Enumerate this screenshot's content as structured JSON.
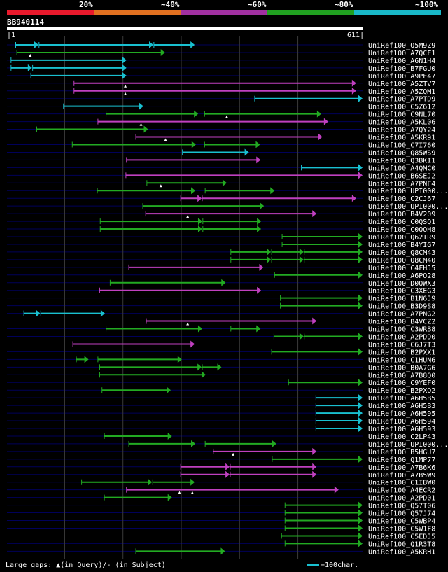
{
  "chart_data": {
    "type": "alignment",
    "legend": {
      "segments": [
        {
          "label": "20%",
          "color": "#e8192c"
        },
        {
          "label": "~40%",
          "color": "#e07020"
        },
        {
          "label": "~60%",
          "color": "#a030a0"
        },
        {
          "label": "~80%",
          "color": "#20a020"
        },
        {
          "label": "~100%",
          "color": "#19b8c8"
        }
      ]
    },
    "query": {
      "id": "BB940114",
      "start": "1",
      "end": "611",
      "length": 611
    },
    "gridlines": [
      100,
      200,
      300,
      400,
      500
    ],
    "hits": [
      {
        "label": "UniRef100_Q5M9Z9",
        "color": "cyan",
        "segs": [
          [
            16,
            55
          ],
          [
            56,
            252
          ],
          [
            253,
            323
          ]
        ],
        "marks": []
      },
      {
        "label": "UniRef100_A7QCF1",
        "color": "green",
        "segs": [
          [
            18,
            272
          ]
        ],
        "marks": [
          41
        ]
      },
      {
        "label": "UniRef100_A6N1H4",
        "color": "cyan",
        "segs": [
          [
            8,
            206
          ]
        ],
        "marks": []
      },
      {
        "label": "UniRef100_B7FGU0",
        "color": "cyan",
        "segs": [
          [
            8,
            44
          ],
          [
            45,
            206
          ]
        ],
        "marks": []
      },
      {
        "label": "UniRef100_A9PE47",
        "color": "cyan",
        "segs": [
          [
            42,
            206
          ]
        ],
        "marks": []
      },
      {
        "label": "UniRef100_A5ZTV7",
        "color": "magenta",
        "segs": [
          [
            116,
            600
          ]
        ],
        "marks": [
          204
        ]
      },
      {
        "label": "UniRef100_A5ZQM1",
        "color": "magenta",
        "segs": [
          [
            116,
            600
          ]
        ],
        "marks": [
          204
        ]
      },
      {
        "label": "UniRef100_A7PTD9",
        "color": "cyan",
        "segs": [
          [
            426,
            611
          ]
        ],
        "marks": []
      },
      {
        "label": "UniRef100_C5Z612",
        "color": "cyan",
        "segs": [
          [
            98,
            235
          ]
        ],
        "marks": []
      },
      {
        "label": "UniRef100_C9NL70",
        "color": "green",
        "segs": [
          [
            171,
            329
          ],
          [
            340,
            540
          ]
        ],
        "marks": [
          378
        ]
      },
      {
        "label": "UniRef100_A5KL06",
        "color": "magenta",
        "segs": [
          [
            157,
            552
          ]
        ],
        "marks": [
          231
        ]
      },
      {
        "label": "UniRef100_A7QY24",
        "color": "green",
        "segs": [
          [
            52,
            243
          ]
        ],
        "marks": []
      },
      {
        "label": "UniRef100_A5KR91",
        "color": "magenta",
        "segs": [
          [
            222,
            542
          ]
        ],
        "marks": [
          273
        ]
      },
      {
        "label": "UniRef100_C7I760",
        "color": "green",
        "segs": [
          [
            113,
            325
          ],
          [
            340,
            435
          ]
        ],
        "marks": []
      },
      {
        "label": "UniRef100_Q85WS9",
        "color": "cyan",
        "segs": [
          [
            302,
            416
          ]
        ],
        "marks": []
      },
      {
        "label": "UniRef100_Q3BKI1",
        "color": "magenta",
        "segs": [
          [
            206,
            436
          ]
        ],
        "marks": []
      },
      {
        "label": "UniRef100_A4QMC0",
        "color": "cyan",
        "segs": [
          [
            506,
            611
          ]
        ],
        "marks": []
      },
      {
        "label": "UniRef100_B6SEJ2",
        "color": "magenta",
        "segs": [
          [
            205,
            611
          ]
        ],
        "marks": []
      },
      {
        "label": "UniRef100_A7PNF4",
        "color": "green",
        "segs": [
          [
            241,
            378
          ]
        ],
        "marks": [
          265
        ]
      },
      {
        "label": "UniRef100_UPI000...",
        "color": "green",
        "segs": [
          [
            156,
            324
          ],
          [
            341,
            460
          ]
        ],
        "marks": []
      },
      {
        "label": "UniRef100_C2CJ67",
        "color": "magenta",
        "segs": [
          [
            299,
            335
          ],
          [
            336,
            600
          ]
        ],
        "marks": []
      },
      {
        "label": "UniRef100_UPI000...",
        "color": "green",
        "segs": [
          [
            234,
            442
          ]
        ],
        "marks": []
      },
      {
        "label": "UniRef100_B4V209",
        "color": "magenta",
        "segs": [
          [
            239,
            532
          ]
        ],
        "marks": [
          311
        ]
      },
      {
        "label": "UniRef100_C0QSQ1",
        "color": "green",
        "segs": [
          [
            161,
            336
          ],
          [
            337,
            437
          ]
        ],
        "marks": []
      },
      {
        "label": "UniRef100_C0QQH8",
        "color": "green",
        "segs": [
          [
            161,
            336
          ],
          [
            337,
            437
          ]
        ],
        "marks": []
      },
      {
        "label": "UniRef100_Q62IR9",
        "color": "green",
        "segs": [
          [
            473,
            611
          ]
        ],
        "marks": []
      },
      {
        "label": "UniRef100_B4YIG7",
        "color": "green",
        "segs": [
          [
            473,
            611
          ]
        ],
        "marks": []
      },
      {
        "label": "UniRef100_Q8CM43",
        "color": "green",
        "segs": [
          [
            385,
            454
          ],
          [
            455,
            510
          ],
          [
            511,
            611
          ]
        ],
        "marks": []
      },
      {
        "label": "UniRef100_Q8CM40",
        "color": "green",
        "segs": [
          [
            385,
            454
          ],
          [
            455,
            510
          ],
          [
            511,
            611
          ]
        ],
        "marks": []
      },
      {
        "label": "UniRef100_C4FHJ5",
        "color": "magenta",
        "segs": [
          [
            210,
            441
          ]
        ],
        "marks": []
      },
      {
        "label": "UniRef100_A6PO28",
        "color": "green",
        "segs": [
          [
            460,
            611
          ]
        ],
        "marks": []
      },
      {
        "label": "UniRef100_D0QWX3",
        "color": "green",
        "segs": [
          [
            178,
            376
          ]
        ],
        "marks": []
      },
      {
        "label": "UniRef100_C3XEG3",
        "color": "magenta",
        "segs": [
          [
            160,
            437
          ]
        ],
        "marks": []
      },
      {
        "label": "UniRef100_B1N6J9",
        "color": "green",
        "segs": [
          [
            470,
            611
          ]
        ],
        "marks": []
      },
      {
        "label": "UniRef100_B3D9S8",
        "color": "green",
        "segs": [
          [
            470,
            611
          ]
        ],
        "marks": []
      },
      {
        "label": "UniRef100_A7PNG2",
        "color": "cyan",
        "segs": [
          [
            30,
            58
          ],
          [
            59,
            169
          ]
        ],
        "marks": []
      },
      {
        "label": "UniRef100_B4VCZ2",
        "color": "magenta",
        "segs": [
          [
            240,
            532
          ]
        ],
        "marks": [
          311
        ]
      },
      {
        "label": "UniRef100_C3WRB8",
        "color": "green",
        "segs": [
          [
            171,
            336
          ],
          [
            385,
            436
          ]
        ],
        "marks": []
      },
      {
        "label": "UniRef100_A2PD90",
        "color": "green",
        "segs": [
          [
            459,
            510
          ],
          [
            511,
            611
          ]
        ],
        "marks": []
      },
      {
        "label": "UniRef100_C6J7T3",
        "color": "magenta",
        "segs": [
          [
            114,
            323
          ]
        ],
        "marks": []
      },
      {
        "label": "UniRef100_B2PXX1",
        "color": "green",
        "segs": [
          [
            455,
            611
          ]
        ],
        "marks": []
      },
      {
        "label": "UniRef100_C1HUN6",
        "color": "green",
        "segs": [
          [
            120,
            141
          ],
          [
            157,
            301
          ]
        ],
        "marks": []
      },
      {
        "label": "UniRef100_B0A7G6",
        "color": "green",
        "segs": [
          [
            160,
            335
          ],
          [
            336,
            369
          ]
        ],
        "marks": []
      },
      {
        "label": "UniRef100_A7B8Q0",
        "color": "green",
        "segs": [
          [
            160,
            342
          ]
        ],
        "marks": []
      },
      {
        "label": "UniRef100_C9YEF0",
        "color": "green",
        "segs": [
          [
            484,
            611
          ]
        ],
        "marks": []
      },
      {
        "label": "UniRef100_B2PXQ2",
        "color": "green",
        "segs": [
          [
            164,
            282
          ]
        ],
        "marks": []
      },
      {
        "label": "UniRef100_A6H5B5",
        "color": "cyan",
        "segs": [
          [
            531,
            611
          ]
        ],
        "marks": []
      },
      {
        "label": "UniRef100_A6H5B3",
        "color": "cyan",
        "segs": [
          [
            531,
            611
          ]
        ],
        "marks": []
      },
      {
        "label": "UniRef100_A6H595",
        "color": "cyan",
        "segs": [
          [
            531,
            611
          ]
        ],
        "marks": []
      },
      {
        "label": "UniRef100_A6H594",
        "color": "cyan",
        "segs": [
          [
            531,
            611
          ]
        ],
        "marks": []
      },
      {
        "label": "UniRef100_A6H593",
        "color": "cyan",
        "segs": [
          [
            531,
            611
          ]
        ],
        "marks": []
      },
      {
        "label": "UniRef100_C2LP43",
        "color": "green",
        "segs": [
          [
            168,
            284
          ]
        ],
        "marks": []
      },
      {
        "label": "UniRef100_UPI000...",
        "color": "green",
        "segs": [
          [
            210,
            324
          ],
          [
            341,
            463
          ]
        ],
        "marks": []
      },
      {
        "label": "UniRef100_B5HGU7",
        "color": "magenta",
        "segs": [
          [
            355,
            532
          ]
        ],
        "marks": [
          389
        ]
      },
      {
        "label": "UniRef100_Q1MP77",
        "color": "green",
        "segs": [
          [
            456,
            611
          ]
        ],
        "marks": []
      },
      {
        "label": "UniRef100_A7B6K6",
        "color": "magenta",
        "segs": [
          [
            299,
            383
          ],
          [
            384,
            532
          ]
        ],
        "marks": []
      },
      {
        "label": "UniRef100_A7B5W9",
        "color": "magenta",
        "segs": [
          [
            299,
            383
          ],
          [
            384,
            532
          ]
        ],
        "marks": []
      },
      {
        "label": "UniRef100_C1IBW0",
        "color": "green",
        "segs": [
          [
            129,
            250
          ],
          [
            251,
            323
          ]
        ],
        "marks": []
      },
      {
        "label": "UniRef100_A4ECR2",
        "color": "magenta",
        "segs": [
          [
            206,
            570
          ]
        ],
        "marks": [
          297,
          319
        ]
      },
      {
        "label": "UniRef100_A2PD01",
        "color": "green",
        "segs": [
          [
            168,
            284
          ]
        ],
        "marks": []
      },
      {
        "label": "UniRef100_Q57T06",
        "color": "green",
        "segs": [
          [
            478,
            611
          ]
        ],
        "marks": []
      },
      {
        "label": "UniRef100_Q57J74",
        "color": "green",
        "segs": [
          [
            478,
            611
          ]
        ],
        "marks": []
      },
      {
        "label": "UniRef100_C5WBP4",
        "color": "green",
        "segs": [
          [
            478,
            611
          ]
        ],
        "marks": []
      },
      {
        "label": "UniRef100_C5W1F8",
        "color": "green",
        "segs": [
          [
            478,
            611
          ]
        ],
        "marks": []
      },
      {
        "label": "UniRef100_C5EDJ5",
        "color": "green",
        "segs": [
          [
            472,
            611
          ]
        ],
        "marks": []
      },
      {
        "label": "UniRef100_Q1R3T8",
        "color": "green",
        "segs": [
          [
            478,
            611
          ]
        ],
        "marks": []
      },
      {
        "label": "UniRef100_A5KRH1",
        "color": "green",
        "segs": [
          [
            222,
            375
          ]
        ],
        "marks": []
      }
    ],
    "footer_left": "Large gaps: ▲(in Query)/- (in Subject)",
    "footer_right": "=100char.",
    "colors": {
      "cyan": "#19c0d0",
      "green": "#22aa22",
      "magenta": "#c040c0",
      "track": "#00005a",
      "grid": "#3a3a3a"
    }
  }
}
